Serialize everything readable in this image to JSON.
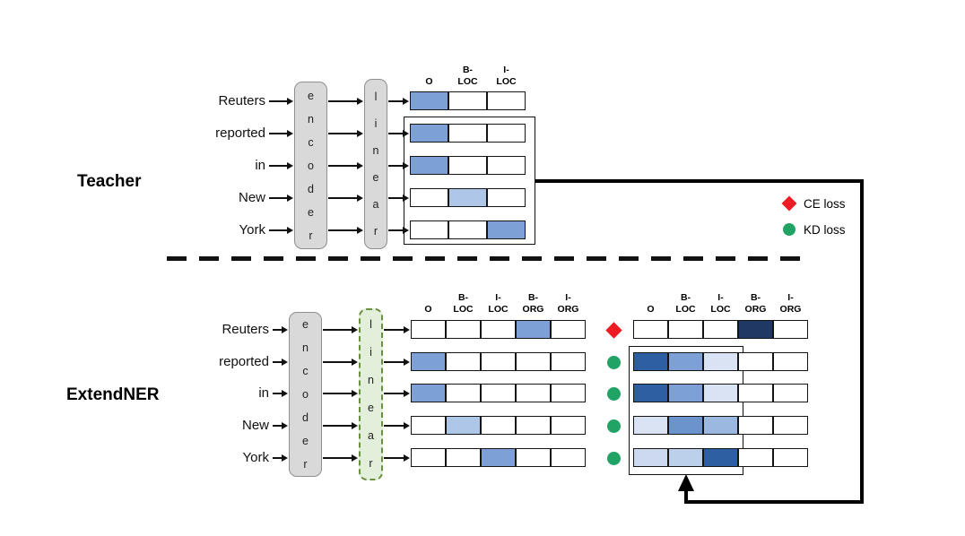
{
  "figure": {
    "teacher": {
      "label": "Teacher",
      "words": [
        "Reuters",
        "reported",
        "in",
        "New",
        "York"
      ],
      "encoder_label": "encoder",
      "linear_label": "linear",
      "headers": [
        "O",
        "B-\nLOC",
        "I-\nLOC"
      ],
      "grid": [
        [
          "blue",
          "white",
          "white"
        ],
        [
          "blue",
          "white",
          "white"
        ],
        [
          "blue",
          "white",
          "white"
        ],
        [
          "white",
          "light_blue",
          "white"
        ],
        [
          "white",
          "white",
          "blue"
        ]
      ]
    },
    "student": {
      "label": "ExtendNER",
      "words": [
        "Reuters",
        "reported",
        "in",
        "New",
        "York"
      ],
      "encoder_label": "encoder",
      "linear_label": "linear",
      "headers": [
        "O",
        "B-\nLOC",
        "I-\nLOC",
        "B-\nORG",
        "I-\nORG"
      ],
      "pred_grid": [
        [
          "white",
          "white",
          "white",
          "blue",
          "white"
        ],
        [
          "blue",
          "white",
          "white",
          "white",
          "white"
        ],
        [
          "blue",
          "white",
          "white",
          "white",
          "white"
        ],
        [
          "white",
          "light_blue",
          "white",
          "white",
          "white"
        ],
        [
          "white",
          "white",
          "blue",
          "white",
          "white"
        ]
      ],
      "row_loss": [
        "ce",
        "kd",
        "kd",
        "kd",
        "kd"
      ],
      "target_grid": [
        [
          "white",
          "white",
          "white",
          "navy",
          "white"
        ],
        [
          "strong_blue",
          "blue",
          "pale_blue",
          "white",
          "white"
        ],
        [
          "strong_blue",
          "blue",
          "pale_blue",
          "white",
          "white"
        ],
        [
          "pale_blue",
          "mid_blue",
          "soft_blue",
          "white",
          "white"
        ],
        [
          "fog_blue",
          "mist_blue",
          "strong_blue",
          "white",
          "white"
        ]
      ]
    },
    "legend": {
      "ce_label": "CE loss",
      "kd_label": "KD loss",
      "ce_color": "#ed1c24",
      "kd_color": "#21a366"
    },
    "palette": {
      "white": "#ffffff",
      "blue": "#7da0d6",
      "light_blue": "#aec6e8",
      "navy": "#1f3864",
      "strong_blue": "#2e5fa3",
      "pale_blue": "#dae3f3",
      "mid_blue": "#6b93cc",
      "soft_blue": "#9ab8e0",
      "fog_blue": "#ccd9ee",
      "mist_blue": "#bccfeb",
      "box_gray": "#d9d9d9",
      "linear_green": "#e2efda"
    }
  }
}
